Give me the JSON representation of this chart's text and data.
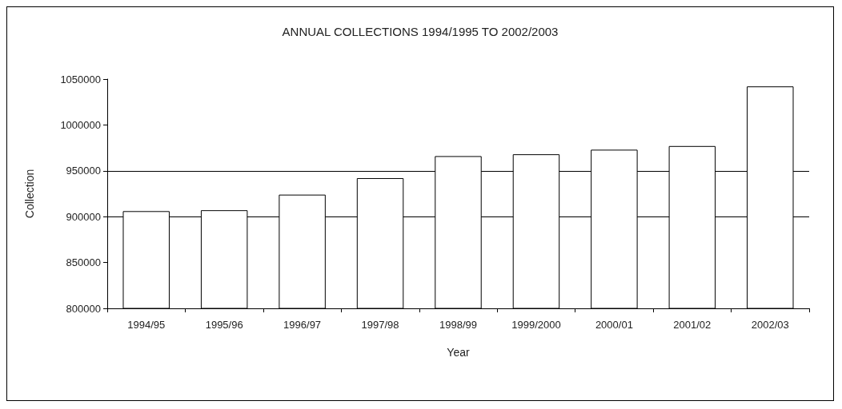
{
  "chart_data": {
    "type": "bar",
    "title": "ANNUAL COLLECTIONS 1994/1995 TO 2002/2003",
    "xlabel": "Year",
    "ylabel": "Collection",
    "categories": [
      "1994/95",
      "1995/96",
      "1996/97",
      "1997/98",
      "1998/99",
      "1999/2000",
      "2000/01",
      "2001/02",
      "2002/03"
    ],
    "values": [
      906000,
      907000,
      924000,
      942000,
      966000,
      968000,
      973000,
      977000,
      1042000
    ],
    "color": "#ffffff",
    "ylim": [
      800000,
      1050000
    ],
    "yticks": [
      800000,
      850000,
      900000,
      950000,
      1000000,
      1050000
    ],
    "ref_lines": [
      {
        "axis": "y",
        "value": 900000,
        "color": "#000000"
      },
      {
        "axis": "y",
        "value": 950000,
        "color": "#000000"
      }
    ],
    "grid": false
  }
}
